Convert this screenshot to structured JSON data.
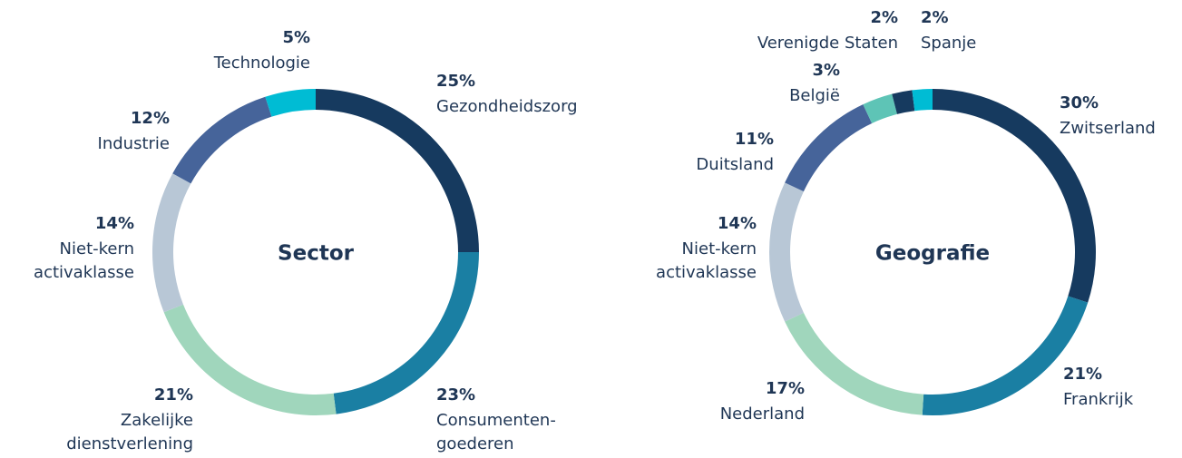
{
  "chart_data": [
    {
      "type": "donut",
      "title": "Sector",
      "categories": [
        "Gezondheidszorg",
        "Consumenten-\ngoederen",
        "Zakelijke\ndienstverlening",
        "Niet-kern\nactivaklasse",
        "Industrie",
        "Technologie"
      ],
      "values": [
        25,
        23,
        21,
        14,
        12,
        5
      ],
      "value_labels": [
        "25%",
        "23%",
        "21%",
        "14%",
        "12%",
        "5%"
      ],
      "colors": [
        "#163a5f",
        "#1a7fa3",
        "#a0d6bc",
        "#b8c7d6",
        "#46649a",
        "#00bcd4"
      ]
    },
    {
      "type": "donut",
      "title": "Geografie",
      "categories": [
        "Zwitserland",
        "Frankrijk",
        "Nederland",
        "Niet-kern\nactivaklasse",
        "Duitsland",
        "België",
        "Verenigde Staten",
        "Spanje"
      ],
      "values": [
        30,
        21,
        17,
        14,
        11,
        3,
        2,
        2
      ],
      "value_labels": [
        "30%",
        "21%",
        "17%",
        "14%",
        "11%",
        "3%",
        "2%",
        "2%"
      ],
      "colors": [
        "#163a5f",
        "#1a7fa3",
        "#a0d6bc",
        "#b8c7d6",
        "#46649a",
        "#5ec4b6",
        "#163a5f",
        "#00bcd4"
      ]
    }
  ]
}
